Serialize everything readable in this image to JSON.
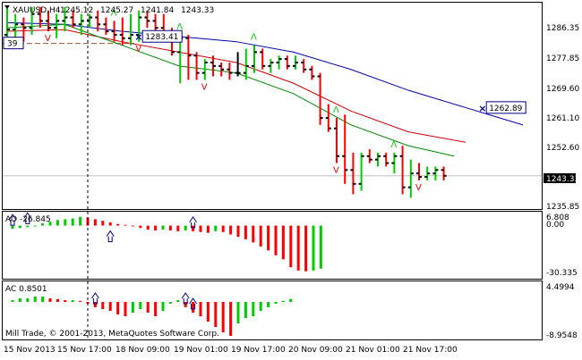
{
  "colors": {
    "bull": "#00cc00",
    "bear": "#ff0000",
    "neutral": "#808080",
    "ma_blue": "#0000aa",
    "ma_red": "#cc0000",
    "ma_green": "#008800",
    "price_line": "#c0c0c0",
    "dashed_level": "#a05030",
    "box_border": "#000080",
    "arrow_blue": "#000080"
  },
  "chart_data": [
    {
      "type": "ohlc",
      "pane": "price",
      "title": "XAUUSD,H4",
      "ohlc_header": [
        "1245.12",
        "1245.27",
        "1241.84",
        "1243.33"
      ],
      "ylim": [
        1234,
        1293
      ],
      "yticks": [
        "1286.35",
        "1277.85",
        "1269.60",
        "1261.10",
        "1252.60",
        "1235.85"
      ],
      "current_price_label": "1243.33",
      "current_price": 1243.33,
      "level_line": 1281.5,
      "level_label": "39",
      "boxes": [
        {
          "text": "1283.41",
          "x": 23,
          "y": 1283.41
        },
        {
          "text": "1262.89",
          "x": 83,
          "y": 1262.89
        }
      ],
      "bars": [
        {
          "o": 1284,
          "h": 1292,
          "l": 1281,
          "c": 1285.5
        },
        {
          "o": 1285.5,
          "h": 1290,
          "l": 1283,
          "c": 1287
        },
        {
          "o": 1287,
          "h": 1289,
          "l": 1282,
          "c": 1286
        },
        {
          "o": 1286,
          "h": 1292,
          "l": 1284,
          "c": 1290
        },
        {
          "o": 1290,
          "h": 1292,
          "l": 1286,
          "c": 1288
        },
        {
          "o": 1288,
          "h": 1291,
          "l": 1285,
          "c": 1286
        },
        {
          "o": 1286,
          "h": 1290,
          "l": 1283,
          "c": 1288
        },
        {
          "o": 1288,
          "h": 1292,
          "l": 1285,
          "c": 1289
        },
        {
          "o": 1289,
          "h": 1291,
          "l": 1286,
          "c": 1287
        },
        {
          "o": 1287,
          "h": 1290,
          "l": 1284,
          "c": 1288
        },
        {
          "o": 1288,
          "h": 1290,
          "l": 1286,
          "c": 1289
        },
        {
          "o": 1289,
          "h": 1291,
          "l": 1285,
          "c": 1287
        },
        {
          "o": 1287,
          "h": 1289,
          "l": 1284,
          "c": 1285
        },
        {
          "o": 1285,
          "h": 1288,
          "l": 1282,
          "c": 1284
        },
        {
          "o": 1284,
          "h": 1289,
          "l": 1281,
          "c": 1283
        },
        {
          "o": 1283,
          "h": 1290,
          "l": 1281,
          "c": 1284
        },
        {
          "o": 1284,
          "h": 1291,
          "l": 1282,
          "c": 1289
        },
        {
          "o": 1289,
          "h": 1291,
          "l": 1286,
          "c": 1288
        },
        {
          "o": 1288,
          "h": 1290,
          "l": 1285,
          "c": 1286
        },
        {
          "o": 1286,
          "h": 1290,
          "l": 1283,
          "c": 1284
        },
        {
          "o": 1284,
          "h": 1286,
          "l": 1278,
          "c": 1279
        },
        {
          "o": 1279,
          "h": 1284,
          "l": 1270,
          "c": 1283
        },
        {
          "o": 1283,
          "h": 1284,
          "l": 1271,
          "c": 1278
        },
        {
          "o": 1278,
          "h": 1279,
          "l": 1271,
          "c": 1273
        },
        {
          "o": 1273,
          "h": 1277,
          "l": 1271,
          "c": 1276
        },
        {
          "o": 1276,
          "h": 1278,
          "l": 1272,
          "c": 1275
        },
        {
          "o": 1275,
          "h": 1276,
          "l": 1272,
          "c": 1274
        },
        {
          "o": 1274,
          "h": 1276,
          "l": 1271,
          "c": 1273
        },
        {
          "o": 1273,
          "h": 1279,
          "l": 1272,
          "c": 1273
        },
        {
          "o": 1273,
          "h": 1280,
          "l": 1271,
          "c": 1275
        },
        {
          "o": 1275,
          "h": 1281,
          "l": 1273,
          "c": 1279
        },
        {
          "o": 1279,
          "h": 1280,
          "l": 1274,
          "c": 1275
        },
        {
          "o": 1275,
          "h": 1277,
          "l": 1273,
          "c": 1276
        },
        {
          "o": 1276,
          "h": 1278,
          "l": 1274,
          "c": 1277
        },
        {
          "o": 1277,
          "h": 1278,
          "l": 1274,
          "c": 1275
        },
        {
          "o": 1275,
          "h": 1278,
          "l": 1274,
          "c": 1276
        },
        {
          "o": 1276,
          "h": 1277,
          "l": 1273,
          "c": 1274
        },
        {
          "o": 1274,
          "h": 1275,
          "l": 1271,
          "c": 1272
        },
        {
          "o": 1272,
          "h": 1273,
          "l": 1258,
          "c": 1260
        },
        {
          "o": 1260,
          "h": 1264,
          "l": 1256,
          "c": 1257
        },
        {
          "o": 1257,
          "h": 1260,
          "l": 1247,
          "c": 1249
        },
        {
          "o": 1249,
          "h": 1261,
          "l": 1241,
          "c": 1245
        },
        {
          "o": 1245,
          "h": 1250,
          "l": 1238,
          "c": 1241
        },
        {
          "o": 1241,
          "h": 1250,
          "l": 1239,
          "c": 1249
        },
        {
          "o": 1249,
          "h": 1251,
          "l": 1247,
          "c": 1248
        },
        {
          "o": 1248,
          "h": 1250,
          "l": 1246,
          "c": 1249
        },
        {
          "o": 1249,
          "h": 1250,
          "l": 1246,
          "c": 1247
        },
        {
          "o": 1247,
          "h": 1250,
          "l": 1244,
          "c": 1249
        },
        {
          "o": 1249,
          "h": 1252,
          "l": 1238,
          "c": 1240
        },
        {
          "o": 1240,
          "h": 1248,
          "l": 1237,
          "c": 1244
        },
        {
          "o": 1244,
          "h": 1247,
          "l": 1242,
          "c": 1243
        },
        {
          "o": 1243,
          "h": 1246,
          "l": 1242,
          "c": 1244
        },
        {
          "o": 1244,
          "h": 1246,
          "l": 1242,
          "c": 1245
        },
        {
          "o": 1245,
          "h": 1246,
          "l": 1242,
          "c": 1243.33
        }
      ],
      "ma_blue": [
        [
          0,
          1287.5
        ],
        [
          10,
          1287
        ],
        [
          20,
          1285
        ],
        [
          30,
          1283.5
        ],
        [
          40,
          1282
        ],
        [
          50,
          1279
        ],
        [
          60,
          1274
        ],
        [
          70,
          1268
        ],
        [
          80,
          1263
        ],
        [
          90,
          1258
        ]
      ],
      "ma_red": [
        [
          0,
          1285
        ],
        [
          10,
          1285.5
        ],
        [
          20,
          1282
        ],
        [
          30,
          1279
        ],
        [
          40,
          1276
        ],
        [
          50,
          1270
        ],
        [
          60,
          1262
        ],
        [
          70,
          1256
        ],
        [
          80,
          1253
        ]
      ],
      "ma_green": [
        [
          0,
          1286
        ],
        [
          10,
          1287
        ],
        [
          20,
          1281
        ],
        [
          30,
          1275
        ],
        [
          40,
          1273
        ],
        [
          50,
          1267
        ],
        [
          60,
          1258
        ],
        [
          70,
          1252
        ],
        [
          78,
          1249
        ]
      ],
      "fractals_up": [
        13,
        21,
        30,
        40,
        47
      ],
      "fractals_down": [
        5,
        16,
        24,
        40,
        50
      ]
    },
    {
      "type": "bar",
      "pane": "AO",
      "title": "AO -26.845",
      "yticks": [
        "6.808",
        "0.00",
        "-30.335"
      ],
      "ylim": [
        -32,
        7
      ],
      "values": [
        -2.0,
        -1.5,
        -1.0,
        -0.5,
        1.5,
        2.5,
        3.5,
        4.0,
        4.5,
        5.5,
        5.0,
        4.0,
        3.0,
        2.0,
        1.0,
        0.5,
        -0.5,
        -1.5,
        -2.5,
        -3.0,
        -2.5,
        -3.0,
        -3.5,
        -3.0,
        -3.5,
        -4.0,
        -4.5,
        -3.5,
        -4.0,
        -5.5,
        -7.0,
        -8.5,
        -10.5,
        -13.0,
        -15.5,
        -18.5,
        -21.0,
        -26.0,
        -28.0,
        -28.5,
        -28.0,
        -26.845
      ],
      "arrows": [
        0,
        2,
        13,
        24
      ]
    },
    {
      "type": "bar",
      "pane": "AC",
      "title": "AC 0.8501",
      "yticks": [
        "4.4994",
        "-8.9548"
      ],
      "ylim": [
        -10,
        5
      ],
      "values": [
        0.5,
        1.0,
        1.0,
        1.5,
        1.5,
        1.0,
        0.8,
        0.5,
        0.5,
        0.3,
        -0.5,
        -1.5,
        -2.0,
        -2.5,
        -3.5,
        -4.0,
        -3.0,
        -2.0,
        -3.0,
        -4.0,
        -2.5,
        -0.5,
        0.5,
        -1.5,
        -3.0,
        -4.0,
        -5.5,
        -7.0,
        -8.5,
        -9.5,
        -6.0,
        -4.5,
        -4.0,
        -2.5,
        -1.5,
        -0.5,
        0.3,
        0.8501
      ],
      "arrows": [
        11,
        23,
        24
      ]
    }
  ],
  "copyright": "Mill Trade, © 2001-2013, MetaQuotes Software Corp.",
  "x_labels": [
    "15 Nov 2013",
    "15 Nov 17:00",
    "18 Nov 09:00",
    "19 Nov 01:00",
    "19 Nov 17:00",
    "20 Nov 09:00",
    "21 Nov 01:00",
    "21 Nov 17:00"
  ]
}
